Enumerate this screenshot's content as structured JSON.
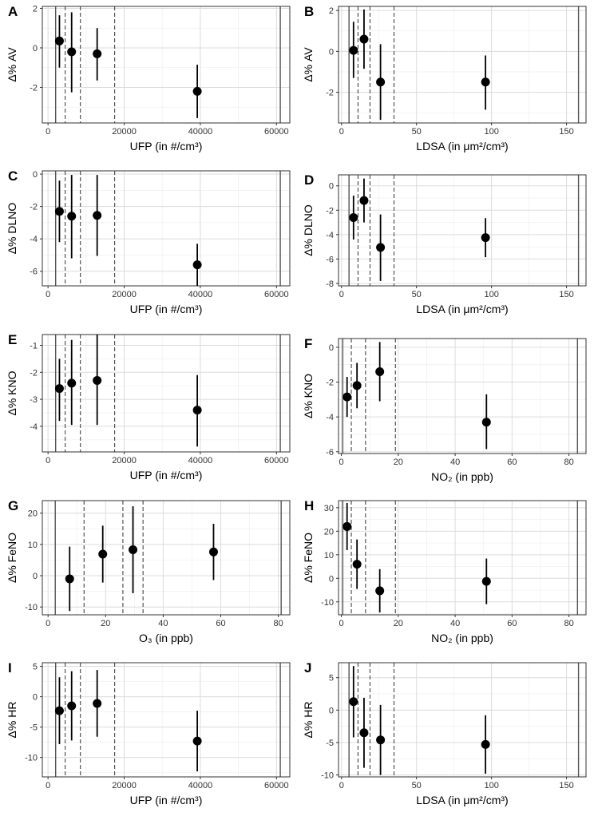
{
  "chart_data": [
    {
      "panel": "A",
      "type": "scatter",
      "xlabel": "UFP (in #/cm³)",
      "ylabel": "Δ% AV",
      "xlim": [
        -1500,
        63500
      ],
      "ylim": [
        -3.8,
        2.1
      ],
      "xticks": [
        0,
        20000,
        40000,
        60000
      ],
      "yticks": [
        -2,
        0,
        2
      ],
      "solid_lines": [
        2000,
        61000
      ],
      "dashed_lines": [
        4500,
        8500,
        17500
      ],
      "points": [
        {
          "x": 3000,
          "y": 0.35,
          "lo": -1.0,
          "hi": 1.65
        },
        {
          "x": 6200,
          "y": -0.2,
          "lo": -2.25,
          "hi": 1.8
        },
        {
          "x": 12900,
          "y": -0.3,
          "lo": -1.65,
          "hi": 1.0
        },
        {
          "x": 39200,
          "y": -2.2,
          "lo": -3.55,
          "hi": -0.85
        }
      ]
    },
    {
      "panel": "B",
      "type": "scatter",
      "xlabel": "LDSA (in μm²/cm³)",
      "ylabel": "Δ% AV",
      "xlim": [
        -2,
        163
      ],
      "ylim": [
        -3.5,
        2.2
      ],
      "xticks": [
        0,
        50,
        100,
        150
      ],
      "yticks": [
        -2,
        0,
        2
      ],
      "solid_lines": [
        5,
        158
      ],
      "dashed_lines": [
        11,
        19,
        35
      ],
      "points": [
        {
          "x": 8,
          "y": 0.05,
          "lo": -1.3,
          "hi": 1.45
        },
        {
          "x": 15,
          "y": 0.6,
          "lo": -0.85,
          "hi": 2.05
        },
        {
          "x": 26,
          "y": -1.5,
          "lo": -3.35,
          "hi": 0.35
        },
        {
          "x": 96,
          "y": -1.5,
          "lo": -2.85,
          "hi": -0.2
        }
      ]
    },
    {
      "panel": "C",
      "type": "scatter",
      "xlabel": "UFP (in #/cm³)",
      "ylabel": "Δ% DLNO",
      "xlim": [
        -1500,
        63500
      ],
      "ylim": [
        -6.9,
        0.2
      ],
      "xticks": [
        0,
        20000,
        40000,
        60000
      ],
      "yticks": [
        -6,
        -4,
        -2,
        0
      ],
      "solid_lines": [
        2000,
        61000
      ],
      "dashed_lines": [
        4500,
        8500,
        17500
      ],
      "points": [
        {
          "x": 3000,
          "y": -2.3,
          "lo": -4.2,
          "hi": -0.4
        },
        {
          "x": 6200,
          "y": -2.6,
          "lo": -5.2,
          "hi": -0.05
        },
        {
          "x": 12900,
          "y": -2.55,
          "lo": -5.05,
          "hi": -0.05
        },
        {
          "x": 39200,
          "y": -5.6,
          "lo": -6.9,
          "hi": -4.3
        }
      ]
    },
    {
      "panel": "D",
      "type": "scatter",
      "xlabel": "LDSA (in μm²/cm³)",
      "ylabel": "Δ% DLNO",
      "xlim": [
        -2,
        163
      ],
      "ylim": [
        -8.2,
        0.9
      ],
      "xticks": [
        0,
        50,
        100,
        150
      ],
      "yticks": [
        -8,
        -6,
        -4,
        -2,
        0
      ],
      "solid_lines": [
        5,
        158
      ],
      "dashed_lines": [
        11,
        19,
        35
      ],
      "points": [
        {
          "x": 8,
          "y": -2.6,
          "lo": -4.4,
          "hi": -0.8
        },
        {
          "x": 15,
          "y": -1.2,
          "lo": -3.0,
          "hi": 0.6
        },
        {
          "x": 26,
          "y": -5.05,
          "lo": -7.8,
          "hi": -2.35
        },
        {
          "x": 96,
          "y": -4.25,
          "lo": -5.85,
          "hi": -2.65
        }
      ]
    },
    {
      "panel": "E",
      "type": "scatter",
      "xlabel": "UFP (in #/cm³)",
      "ylabel": "Δ% KNO",
      "xlim": [
        -1500,
        63500
      ],
      "ylim": [
        -4.95,
        -0.6
      ],
      "xticks": [
        0,
        20000,
        40000,
        60000
      ],
      "yticks": [
        -4,
        -3,
        -2,
        -1
      ],
      "solid_lines": [
        2000,
        61000
      ],
      "dashed_lines": [
        4500,
        8500,
        17500
      ],
      "points": [
        {
          "x": 3000,
          "y": -2.6,
          "lo": -3.8,
          "hi": -1.5
        },
        {
          "x": 6200,
          "y": -2.4,
          "lo": -3.95,
          "hi": -0.8
        },
        {
          "x": 12900,
          "y": -2.3,
          "lo": -3.95,
          "hi": -0.6
        },
        {
          "x": 39200,
          "y": -3.4,
          "lo": -4.75,
          "hi": -2.1
        }
      ]
    },
    {
      "panel": "F",
      "type": "scatter",
      "xlabel": "NO₂ (in ppb)",
      "ylabel": "Δ% KNO",
      "xlim": [
        -1,
        86
      ],
      "ylim": [
        -6.1,
        0.5
      ],
      "xticks": [
        0,
        20,
        40,
        60,
        80
      ],
      "yticks": [
        -6,
        -4,
        -2,
        0
      ],
      "solid_lines": [
        0.5,
        83
      ],
      "dashed_lines": [
        3.5,
        8.5,
        19
      ],
      "points": [
        {
          "x": 2,
          "y": -2.85,
          "lo": -4.0,
          "hi": -1.7
        },
        {
          "x": 5.5,
          "y": -2.2,
          "lo": -3.5,
          "hi": -0.9
        },
        {
          "x": 13.5,
          "y": -1.4,
          "lo": -3.1,
          "hi": 0.3
        },
        {
          "x": 51,
          "y": -4.3,
          "lo": -5.85,
          "hi": -2.7
        }
      ]
    },
    {
      "panel": "G",
      "type": "scatter",
      "xlabel": "O₃ (in ppb)",
      "ylabel": "Δ% FeNO",
      "xlim": [
        -2,
        84
      ],
      "ylim": [
        -12.5,
        24
      ],
      "xticks": [
        0,
        20,
        40,
        60,
        80
      ],
      "yticks": [
        -10,
        0,
        10,
        20
      ],
      "solid_lines": [
        2.5,
        81
      ],
      "dashed_lines": [
        12.5,
        26,
        33
      ],
      "points": [
        {
          "x": 7.5,
          "y": -1.0,
          "lo": -11.3,
          "hi": 9.3
        },
        {
          "x": 19,
          "y": 6.9,
          "lo": -2.2,
          "hi": 16.0
        },
        {
          "x": 29.5,
          "y": 8.3,
          "lo": -5.6,
          "hi": 22.2
        },
        {
          "x": 57.5,
          "y": 7.6,
          "lo": -1.4,
          "hi": 16.6
        }
      ]
    },
    {
      "panel": "H",
      "type": "scatter",
      "xlabel": "NO₂ (in ppb)",
      "ylabel": "Δ% FeNO",
      "xlim": [
        -1,
        86
      ],
      "ylim": [
        -15.5,
        33
      ],
      "xticks": [
        0,
        20,
        40,
        60,
        80
      ],
      "yticks": [
        -10,
        0,
        10,
        20,
        30
      ],
      "solid_lines": [
        0.5,
        83
      ],
      "dashed_lines": [
        3.5,
        8.5,
        19
      ],
      "points": [
        {
          "x": 2,
          "y": 22.0,
          "lo": 12.0,
          "hi": 32.0
        },
        {
          "x": 5.5,
          "y": 6.0,
          "lo": -4.5,
          "hi": 16.5
        },
        {
          "x": 13.5,
          "y": -5.3,
          "lo": -14.5,
          "hi": 3.9
        },
        {
          "x": 51,
          "y": -1.3,
          "lo": -11.0,
          "hi": 8.4
        }
      ]
    },
    {
      "panel": "I",
      "type": "scatter",
      "xlabel": "UFP (in #/cm³)",
      "ylabel": "Δ% HR",
      "xlim": [
        -1500,
        63500
      ],
      "ylim": [
        -13.2,
        5.6
      ],
      "xticks": [
        0,
        20000,
        40000,
        60000
      ],
      "yticks": [
        -10,
        -5,
        0,
        5
      ],
      "solid_lines": [
        2000,
        61000
      ],
      "dashed_lines": [
        4500,
        8500,
        17500
      ],
      "points": [
        {
          "x": 3000,
          "y": -2.3,
          "lo": -7.8,
          "hi": 3.2
        },
        {
          "x": 6200,
          "y": -1.5,
          "lo": -7.2,
          "hi": 4.2
        },
        {
          "x": 12900,
          "y": -1.1,
          "lo": -6.6,
          "hi": 4.4
        },
        {
          "x": 39200,
          "y": -7.3,
          "lo": -12.3,
          "hi": -2.3
        }
      ]
    },
    {
      "panel": "J",
      "type": "scatter",
      "xlabel": "LDSA (in μm²/cm³)",
      "ylabel": "Δ% HR",
      "xlim": [
        -2,
        163
      ],
      "ylim": [
        -10.3,
        7.3
      ],
      "xticks": [
        0,
        50,
        100,
        150
      ],
      "yticks": [
        -10,
        -5,
        0,
        5
      ],
      "solid_lines": [
        5,
        158
      ],
      "dashed_lines": [
        11,
        19,
        35
      ],
      "points": [
        {
          "x": 8,
          "y": 1.3,
          "lo": -4.2,
          "hi": 6.8
        },
        {
          "x": 15,
          "y": -3.5,
          "lo": -8.9,
          "hi": 1.9
        },
        {
          "x": 26,
          "y": -4.6,
          "lo": -10.0,
          "hi": 0.8
        },
        {
          "x": 96,
          "y": -5.3,
          "lo": -9.8,
          "hi": -0.8
        }
      ]
    }
  ]
}
